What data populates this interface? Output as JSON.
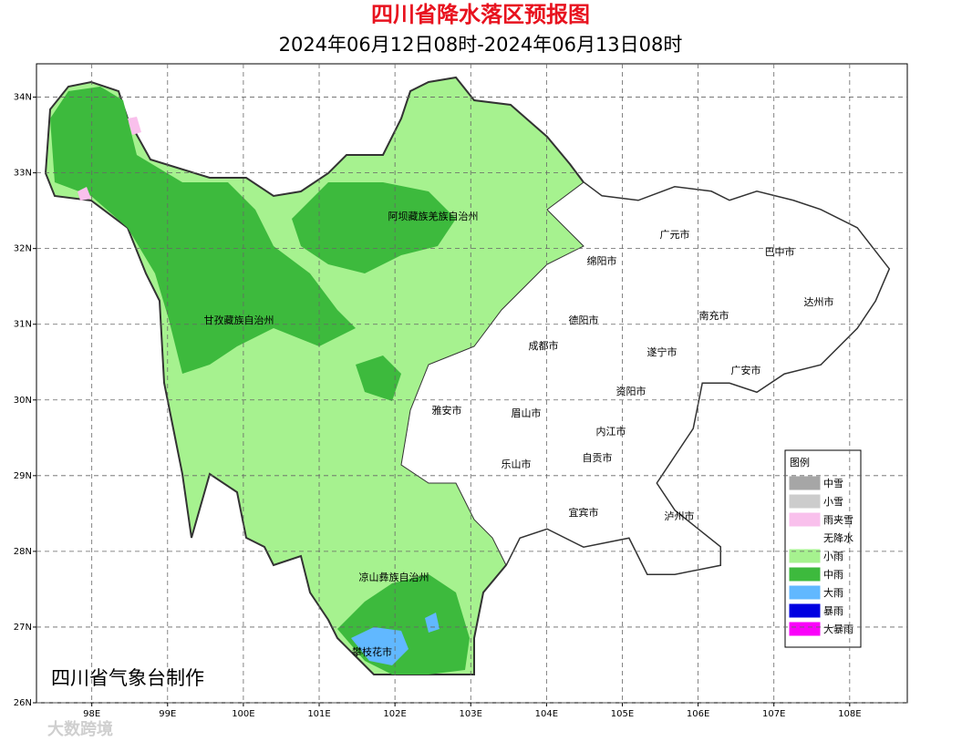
{
  "title": "四川省降水落区预报图",
  "subtitle": "2024年06月12日08时-2024年06月13日08时",
  "map": {
    "xlim": [
      97.27,
      108.76
    ],
    "ylim": [
      26,
      34.44
    ],
    "xticks": [
      {
        "value": 98,
        "label": "98E"
      },
      {
        "value": 99,
        "label": "99E"
      },
      {
        "value": 100,
        "label": "100E"
      },
      {
        "value": 101,
        "label": "101E"
      },
      {
        "value": 102,
        "label": "102E"
      },
      {
        "value": 103,
        "label": "103E"
      },
      {
        "value": 104,
        "label": "104E"
      },
      {
        "value": 105,
        "label": "105E"
      },
      {
        "value": 106,
        "label": "106E"
      },
      {
        "value": 107,
        "label": "107E"
      },
      {
        "value": 108,
        "label": "108E"
      }
    ],
    "yticks": [
      {
        "value": 26,
        "label": "26N"
      },
      {
        "value": 27,
        "label": "27N"
      },
      {
        "value": 28,
        "label": "28N"
      },
      {
        "value": 29,
        "label": "29N"
      },
      {
        "value": 30,
        "label": "30N"
      },
      {
        "value": 31,
        "label": "31N"
      },
      {
        "value": 32,
        "label": "32N"
      },
      {
        "value": 33,
        "label": "33N"
      },
      {
        "value": 34,
        "label": "34N"
      }
    ],
    "grid": true,
    "regions": [
      "阿坝藏族羌族自治州",
      "甘孜藏族自治州",
      "凉山彝族自治州",
      "广元市",
      "巴中市",
      "绵阳市",
      "达州市",
      "德阳市",
      "南充市",
      "成都市",
      "遂宁市",
      "广安市",
      "资阳市",
      "雅安市",
      "眉山市",
      "内江市",
      "乐山市",
      "自贡市",
      "宜宾市",
      "泸州市",
      "攀枝花市"
    ],
    "credit": "四川省气象台制作"
  },
  "legend": {
    "title": "图例",
    "items": [
      {
        "name": "中雪",
        "color": "#a6a6a6"
      },
      {
        "name": "小雪",
        "color": "#cccccc"
      },
      {
        "name": "雨夹雪",
        "color": "#f9c0ec"
      },
      {
        "name": "无降水",
        "color": "#ffffff"
      },
      {
        "name": "小雨",
        "color": "#a6f28f"
      },
      {
        "name": "中雨",
        "color": "#3dba3d"
      },
      {
        "name": "大雨",
        "color": "#61b8ff"
      },
      {
        "name": "暴雨",
        "color": "#0000e1"
      },
      {
        "name": "大暴雨",
        "color": "#fa00fa"
      }
    ]
  },
  "watermark": "大数跨境"
}
